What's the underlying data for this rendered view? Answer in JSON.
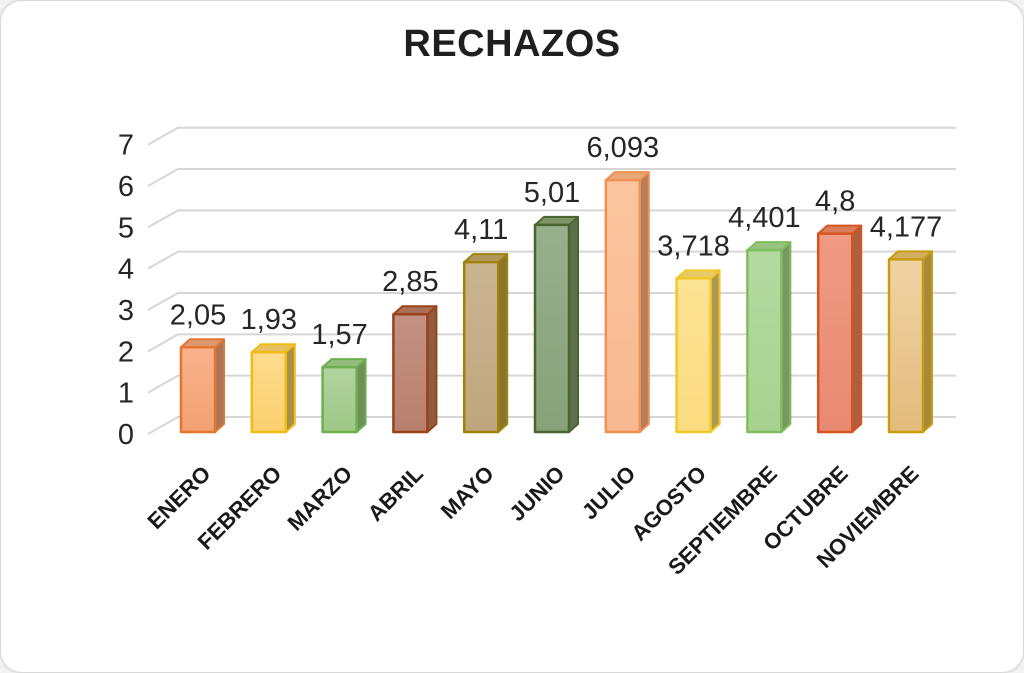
{
  "chart_data": {
    "type": "bar",
    "style": "3d-column",
    "title": "RECHAZOS",
    "xlabel": "",
    "ylabel": "",
    "ylim": [
      0,
      7
    ],
    "yticks": [
      0,
      1,
      2,
      3,
      4,
      5,
      6,
      7
    ],
    "grid": "horizontal",
    "legend": "none",
    "decimal_separator": ",",
    "categories": [
      "ENERO",
      "FEBRERO",
      "MARZO",
      "ABRIL",
      "MAYO",
      "JUNIO",
      "JULIO",
      "AGOSTO",
      "SEPTIEMBRE",
      "OCTUBRE",
      "NOVIEMBRE"
    ],
    "values": [
      2.05,
      1.93,
      1.57,
      2.85,
      4.11,
      5.01,
      6.093,
      3.718,
      4.401,
      4.8,
      4.177
    ],
    "value_labels": [
      "2,05",
      "1,93",
      "1,57",
      "2,85",
      "4,11",
      "5,01",
      "6,093",
      "3,718",
      "4,401",
      "4,8",
      "4,177"
    ],
    "bar_colors": [
      {
        "fill": "#F8B28C",
        "fill2": "#F2A173",
        "top": "#DB9A6F",
        "side": "#A9765B",
        "border": "#E4752F"
      },
      {
        "fill": "#FDDC8E",
        "fill2": "#FBCF6E",
        "top": "#E6C161",
        "side": "#A98F47",
        "border": "#F0BC14"
      },
      {
        "fill": "#B2D49F",
        "fill2": "#9DC887",
        "top": "#92BC7C",
        "side": "#6F8F5A",
        "border": "#6EB04E"
      },
      {
        "fill": "#C49184",
        "fill2": "#B97F6D",
        "top": "#AB7058",
        "side": "#8F5B41",
        "border": "#99431A"
      },
      {
        "fill": "#CAB490",
        "fill2": "#BFA67E",
        "top": "#B1985F",
        "side": "#8A7430",
        "border": "#9F820A"
      },
      {
        "fill": "#97AF8B",
        "fill2": "#87A279",
        "top": "#7E9464",
        "side": "#5E7049",
        "border": "#49652F"
      },
      {
        "fill": "#FAC59F",
        "fill2": "#F8B991",
        "top": "#E8A878",
        "side": "#B57E5D",
        "border": "#F09152"
      },
      {
        "fill": "#FCE294",
        "fill2": "#FADB80",
        "top": "#E7CB68",
        "side": "#AE9A55",
        "border": "#F2C728"
      },
      {
        "fill": "#B5DAA0",
        "fill2": "#A7D191",
        "top": "#98C37E",
        "side": "#7A9961",
        "border": "#7FBE5F"
      },
      {
        "fill": "#EF9A84",
        "fill2": "#E98A72",
        "top": "#D87D59",
        "side": "#AD5F43",
        "border": "#D4551F"
      },
      {
        "fill": "#F0D3A3",
        "fill2": "#E3BB7D",
        "top": "#D3AD60",
        "side": "#A58A3E",
        "border": "#C79C0E"
      }
    ],
    "grid_color": "#D6D6D6",
    "axis_text_color": "#262626",
    "label_text_color": "#1a1a1a",
    "title_color": "#1f1f1f",
    "background_color": "#FFFFFF"
  }
}
